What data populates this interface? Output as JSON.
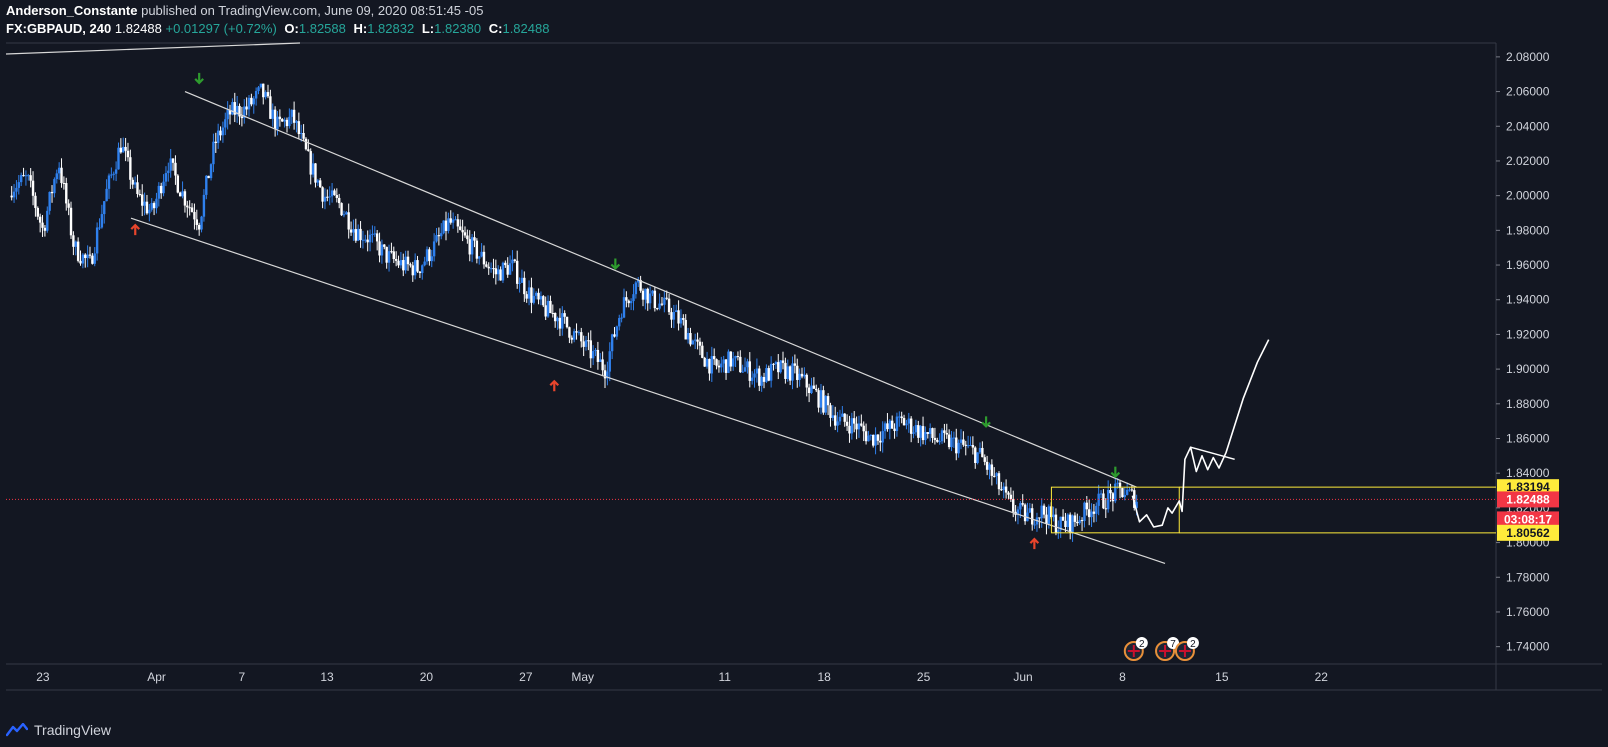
{
  "header": {
    "author": "Anderson_Constante",
    "published": "published on TradingView.com, June 09, 2020 08:51:45 -05",
    "symbol": "FX:GBPAUD, 240",
    "last": "1.82488",
    "change": "+0.01297 (+0.72%)",
    "o_label": "O:",
    "o_value": "1.82588",
    "h_label": "H:",
    "h_value": "1.82832",
    "l_label": "L:",
    "l_value": "1.82380",
    "c_label": "C:",
    "c_value": "1.82488"
  },
  "footer": {
    "brand": "TradingView"
  },
  "colors": {
    "background": "#131722",
    "candle_up": "#2f80ed",
    "candle_down": "#ffffff",
    "channel": "#d8d8d8",
    "box": "#ffeb3b",
    "price_tag": "#f23645",
    "arrow_down": "#2e9b2e",
    "arrow_up": "#e8452c"
  },
  "chart_data": {
    "type": "candlestick",
    "symbol": "GBPAUD",
    "timeframe": "240",
    "ylim": [
      1.73,
      2.088
    ],
    "y_ticks": [
      "2.08000",
      "2.06000",
      "2.04000",
      "2.02000",
      "2.00000",
      "1.98000",
      "1.96000",
      "1.94000",
      "1.92000",
      "1.90000",
      "1.88000",
      "1.86000",
      "1.84000",
      "1.82000",
      "1.80000",
      "1.78000",
      "1.76000",
      "1.74000"
    ],
    "x_range_days": [
      -4.5,
      27.2
    ],
    "x_ticks": [
      {
        "label": "23",
        "day": -8
      },
      {
        "label": "Apr",
        "day": 0
      },
      {
        "label": "7",
        "day": 6
      },
      {
        "label": "13",
        "day": 12
      },
      {
        "label": "20",
        "day": 19
      },
      {
        "label": "27",
        "day": 26
      },
      {
        "label": "May",
        "day": 30
      },
      {
        "label": "11",
        "day": 40
      },
      {
        "label": "18",
        "day": 47
      },
      {
        "label": "25",
        "day": 54
      },
      {
        "label": "Jun",
        "day": 61
      },
      {
        "label": "8",
        "day": 68
      },
      {
        "label": "15",
        "day": 75
      },
      {
        "label": "22",
        "day": 82
      }
    ],
    "x_domain_days": [
      -10.6,
      94.3
    ],
    "trend_path_closes": [
      2.005,
      2.01,
      1.98,
      2.02,
      1.97,
      1.96,
      2.0,
      2.03,
      2.0,
      1.99,
      2.02,
      2.0,
      1.985,
      2.03,
      2.048,
      2.05,
      2.06,
      2.04,
      2.045,
      2.02,
      2.0,
      1.995,
      1.98,
      1.975,
      1.965,
      1.96,
      1.958,
      1.97,
      1.985,
      1.975,
      1.965,
      1.955,
      1.96,
      1.945,
      1.935,
      1.93,
      1.92,
      1.91,
      1.9,
      1.935,
      1.95,
      1.94,
      1.935,
      1.925,
      1.91,
      1.9,
      1.905,
      1.9,
      1.895,
      1.9,
      1.898,
      1.89,
      1.88,
      1.87,
      1.868,
      1.86,
      1.865,
      1.87,
      1.865,
      1.86,
      1.858,
      1.855,
      1.85,
      1.835,
      1.82,
      1.815,
      1.818,
      1.81,
      1.812,
      1.82,
      1.825,
      1.83,
      1.82488
    ],
    "channel": {
      "upper": [
        {
          "day": 2.0,
          "price": 2.06
        },
        {
          "day": 69.0,
          "price": 1.8319
        }
      ],
      "lower": [
        {
          "day": -1.8,
          "price": 1.987
        },
        {
          "day": 71.0,
          "price": 1.788
        }
      ]
    },
    "range_box": {
      "start_day": 63.0,
      "end_day": 72.0,
      "top": 1.83194,
      "bottom": 1.80562
    },
    "arrows_down": [
      {
        "day": 3.0,
        "price": 2.065
      },
      {
        "day": 32.3,
        "price": 1.958
      },
      {
        "day": 58.4,
        "price": 1.867
      },
      {
        "day": 67.5,
        "price": 1.838
      }
    ],
    "arrows_up": [
      {
        "day": -1.5,
        "price": 1.983
      },
      {
        "day": 28.0,
        "price": 1.893
      },
      {
        "day": 61.8,
        "price": 1.802
      }
    ],
    "projection": [
      {
        "day": 68.7,
        "price": 1.827
      },
      {
        "day": 69.2,
        "price": 1.812
      },
      {
        "day": 69.7,
        "price": 1.816
      },
      {
        "day": 70.2,
        "price": 1.809
      },
      {
        "day": 70.8,
        "price": 1.81
      },
      {
        "day": 71.2,
        "price": 1.82
      },
      {
        "day": 71.5,
        "price": 1.817
      },
      {
        "day": 72.0,
        "price": 1.824
      },
      {
        "day": 72.2,
        "price": 1.818
      },
      {
        "day": 72.4,
        "price": 1.848
      },
      {
        "day": 72.8,
        "price": 1.855
      },
      {
        "day": 73.2,
        "price": 1.841
      },
      {
        "day": 73.6,
        "price": 1.85
      },
      {
        "day": 74.0,
        "price": 1.842
      },
      {
        "day": 74.4,
        "price": 1.849
      },
      {
        "day": 74.8,
        "price": 1.843
      },
      {
        "day": 75.3,
        "price": 1.852
      },
      {
        "day": 76.5,
        "price": 1.883
      },
      {
        "day": 77.5,
        "price": 1.904
      },
      {
        "day": 78.3,
        "price": 1.917
      }
    ],
    "projection_line": [
      {
        "day": 72.8,
        "price": 1.855
      },
      {
        "day": 75.9,
        "price": 1.848
      }
    ],
    "current_price": 1.82488,
    "price_labels": {
      "box_top": "1.83194",
      "current": "1.82488",
      "timer": "03:08:17",
      "box_bottom": "1.80562"
    },
    "events": [
      {
        "day": 68.8,
        "badge": "2"
      },
      {
        "day": 71.0,
        "badge": "7"
      },
      {
        "day": 72.4,
        "badge": "2"
      }
    ]
  }
}
